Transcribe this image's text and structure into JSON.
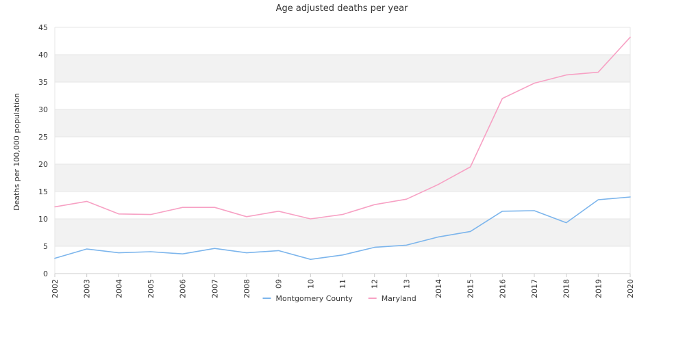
{
  "chart_data": {
    "type": "line",
    "title": "Age adjusted deaths per year",
    "xlabel": "",
    "ylabel": "Deaths per 100,000 population",
    "categories": [
      "2002",
      "2003",
      "2004",
      "2005",
      "2006",
      "2007",
      "2008",
      "09",
      "10",
      "11",
      "12",
      "13",
      "2014",
      "2015",
      "2016",
      "2017",
      "2018",
      "2019",
      "2020"
    ],
    "ylim": [
      0,
      45
    ],
    "yticks": [
      0,
      5,
      10,
      15,
      20,
      25,
      30,
      35,
      40,
      45
    ],
    "grid": "alternating horizontal bands",
    "legend_position": "bottom-center",
    "series": [
      {
        "name": "Montgomery County",
        "color": "#7cb5ec",
        "values": [
          2.8,
          4.5,
          3.8,
          4.0,
          3.6,
          4.6,
          3.8,
          4.2,
          2.6,
          3.4,
          4.8,
          5.2,
          6.7,
          7.7,
          11.4,
          11.5,
          9.3,
          13.5,
          14.0
        ]
      },
      {
        "name": "Maryland",
        "color": "#f7a1c4",
        "values": [
          12.2,
          13.2,
          10.9,
          10.8,
          12.1,
          12.1,
          10.4,
          11.4,
          10.0,
          10.8,
          12.6,
          13.6,
          16.3,
          19.5,
          32.0,
          34.8,
          36.3,
          36.8,
          43.2
        ]
      }
    ]
  }
}
